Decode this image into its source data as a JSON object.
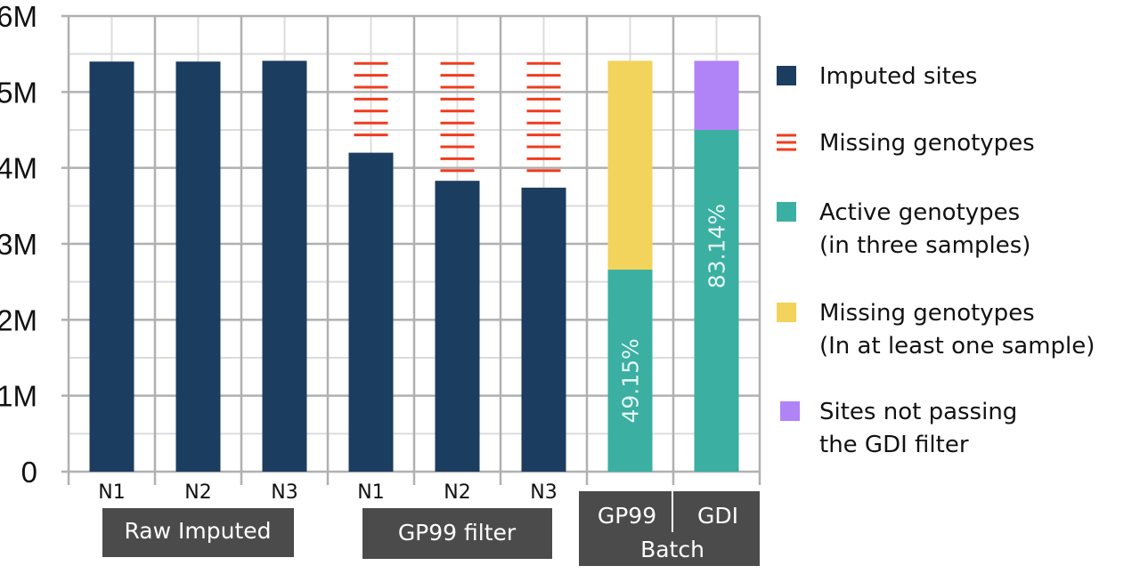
{
  "chart_data": {
    "type": "bar",
    "stacked": true,
    "categories": [
      "N1",
      "N2",
      "N3",
      "N1",
      "N2",
      "N3",
      "GP99",
      "GDI"
    ],
    "groups": [
      {
        "label": "Raw Imputed",
        "categories": [
          "N1",
          "N2",
          "N3"
        ]
      },
      {
        "label": "GP99 filter",
        "categories": [
          "N1",
          "N2",
          "N3"
        ]
      },
      {
        "label": "Batch",
        "categories": [
          "GP99",
          "GDI"
        ]
      }
    ],
    "series": [
      {
        "name": "Imputed sites",
        "color": "#1b3d5f",
        "values": [
          5.4,
          5.4,
          5.41,
          4.2,
          3.83,
          3.74,
          0,
          0
        ]
      },
      {
        "name": "Missing genotypes",
        "color": "#f03c1e",
        "pattern": "horizontal-dashes",
        "values": [
          0,
          0,
          0,
          1.2,
          1.57,
          1.66,
          0,
          0
        ]
      },
      {
        "name": "Active genotypes\n(in three samples)",
        "color": "#3aafa2",
        "values": [
          0,
          0,
          0,
          0,
          0,
          0,
          2.66,
          4.5
        ]
      },
      {
        "name": "Missing genotypes\n(In at least one sample)",
        "color": "#f2d35b",
        "values": [
          0,
          0,
          0,
          0,
          0,
          0,
          2.75,
          0
        ]
      },
      {
        "name": "Sites not passing\nthe GDI filter",
        "color": "#b083f7",
        "values": [
          0,
          0,
          0,
          0,
          0,
          0,
          0,
          0.91
        ]
      }
    ],
    "annotations": [
      {
        "category_index": 6,
        "text": "49.15%"
      },
      {
        "category_index": 7,
        "text": "83.14%"
      }
    ],
    "ylim": [
      0,
      6
    ],
    "yticks": [
      0,
      1,
      2,
      3,
      4,
      5,
      6
    ],
    "ytick_labels": [
      "0",
      "1M",
      "2M",
      "3M",
      "4M",
      "5M",
      "6M"
    ],
    "xlabel": "",
    "ylabel": "",
    "title": "",
    "grid": true,
    "legend_position": "right"
  }
}
